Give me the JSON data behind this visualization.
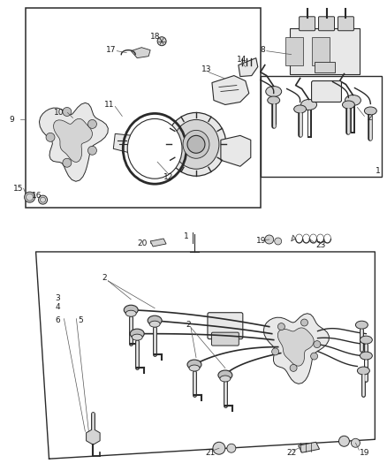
{
  "bg_color": "#ffffff",
  "fig_width": 4.38,
  "fig_height": 5.33,
  "dpi": 100,
  "line_color": "#2a2a2a",
  "text_color": "#1a1a1a",
  "font_size": 6.5,
  "leader_color": "#555555",
  "part_fill": "#e8e8e8",
  "part_fill2": "#d4d4d4",
  "part_edge": "#2a2a2a"
}
